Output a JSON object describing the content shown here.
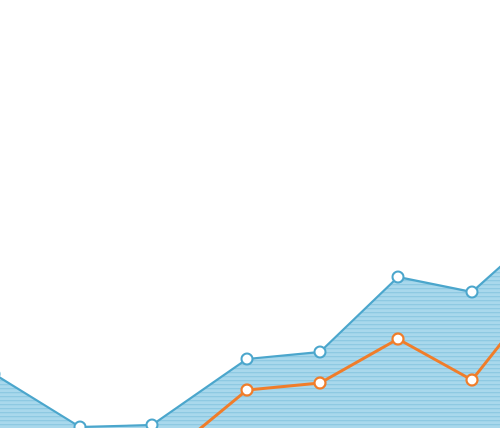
{
  "chart_data": {
    "type": "area",
    "title": "",
    "xlabel": "",
    "ylabel": "",
    "grid": false,
    "legend": "none",
    "x": [
      0,
      1,
      2,
      3,
      4,
      5,
      6,
      7
    ],
    "ylim": [
      0,
      428
    ],
    "series": [
      {
        "kind": "area",
        "color": "#4ba6cc",
        "fill": "#a9d8ec",
        "values": [
          54,
          1,
          3,
          69,
          76,
          151,
          136,
          170
        ]
      },
      {
        "kind": "line",
        "color": "#f07d2a",
        "values": [
          null,
          null,
          null,
          38,
          45,
          89,
          48,
          96
        ]
      }
    ]
  }
}
